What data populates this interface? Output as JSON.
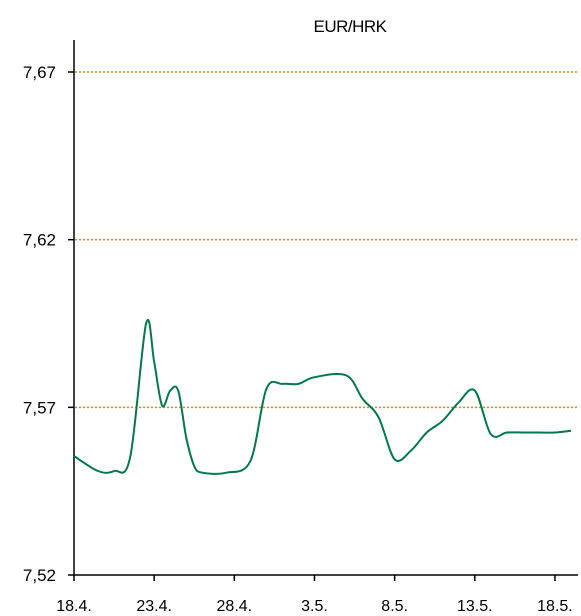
{
  "chart_data": {
    "type": "line",
    "title": "EUR/HRK",
    "xlabel": "",
    "ylabel": "",
    "ylim": [
      7.52,
      7.67
    ],
    "yticks": [
      "7,52",
      "7,57",
      "7,62",
      "7,67"
    ],
    "ytick_values": [
      7.52,
      7.57,
      7.62,
      7.67
    ],
    "x_tick_labels": [
      "18.4.",
      "23.4.",
      "28.4.",
      "3.5.",
      "8.5.",
      "13.5.",
      "18.5."
    ],
    "x_range_days": [
      0,
      31
    ],
    "grid": "horizontal dotted at 7,57 / 7,62 / 7,67",
    "grid_color": "#e8821e",
    "line_color": "#007a4d",
    "series": [
      {
        "name": "",
        "x": [
          0,
          1.5,
          2.5,
          3.5,
          4.5,
          5.0,
          5.5,
          6.0,
          6.5,
          7.0,
          7.5,
          8.0,
          9.5,
          11.0,
          12.0,
          13.0,
          14.0,
          15.0,
          17.0,
          18.0,
          19.0,
          20.0,
          21.0,
          22.0,
          23.0,
          24.0,
          25.0,
          26.0,
          27.0,
          28.0,
          29.0,
          30.0,
          31.0
        ],
        "y": [
          7.5555,
          7.551,
          7.551,
          7.555,
          7.595,
          7.5835,
          7.5705,
          7.575,
          7.575,
          7.561,
          7.5525,
          7.5505,
          7.5505,
          7.554,
          7.5755,
          7.577,
          7.577,
          7.579,
          7.5795,
          7.5725,
          7.567,
          7.5545,
          7.557,
          7.5625,
          7.566,
          7.5715,
          7.575,
          7.562,
          7.5625,
          7.5625,
          7.5625,
          7.5625,
          7.563
        ]
      }
    ]
  }
}
